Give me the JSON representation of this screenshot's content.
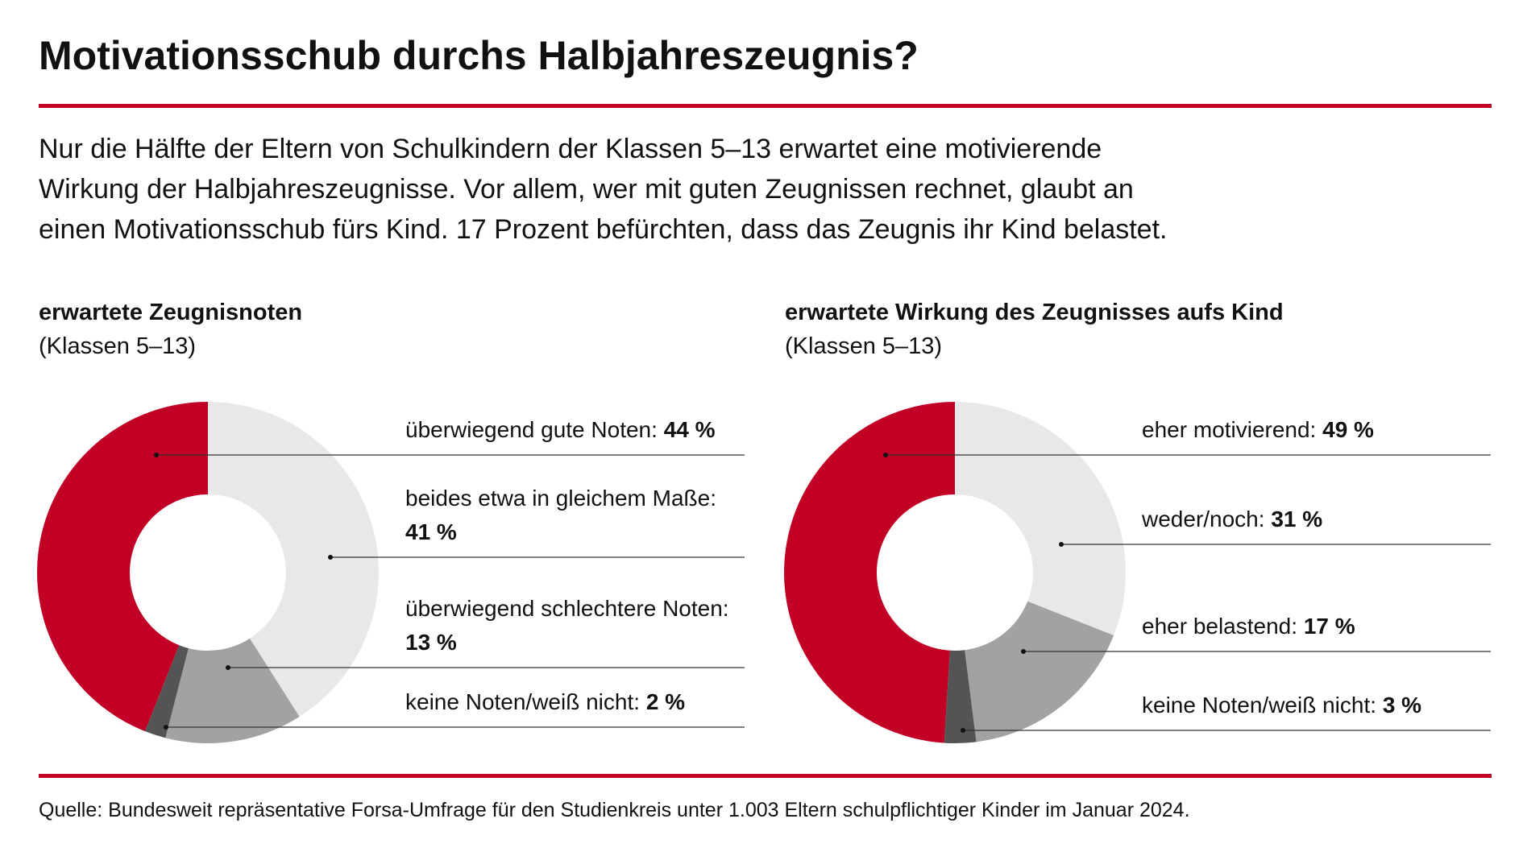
{
  "title": "Motivationsschub durchs Halbjahreszeugnis?",
  "intro": [
    "Nur die Hälfte der Eltern von Schulkindern der Klassen 5–13 erwartet eine motivierende",
    "Wirkung der Halbjahreszeugnisse. Vor allem, wer mit guten Zeugnissen rechnet, glaubt an",
    "einen Motivationsschub fürs Kind. 17 Prozent befürchten, dass das Zeugnis ihr Kind belastet."
  ],
  "source": "Quelle: Bundesweit repräsentative Forsa-Umfrage für den Studienkreis unter 1.003 Eltern schulpflichtiger Kinder im Januar 2024.",
  "chart_data": [
    {
      "type": "donut",
      "title": "erwartete Zeugnisnoten",
      "subtitle": "(Klassen 5–13)",
      "categories": [
        "überwiegend gute Noten:",
        "beides etwa in gleichem Maße:",
        "überwiegend schlechtere Noten:",
        "keine Noten/weiß nicht:"
      ],
      "values": [
        44,
        41,
        13,
        2
      ],
      "value_labels": [
        "44 %",
        "41 %",
        "13 %",
        "2 %"
      ],
      "colors": [
        "#c20025",
        "#e8e8e8",
        "#a2a2a2",
        "#545454"
      ]
    },
    {
      "type": "donut",
      "title": "erwartete Wirkung des Zeugnisses aufs Kind",
      "subtitle": "(Klassen 5–13)",
      "categories": [
        "eher motivierend:",
        "weder/noch:",
        "eher belastend:",
        "keine Noten/weiß nicht:"
      ],
      "values": [
        49,
        31,
        17,
        3
      ],
      "value_labels": [
        "49 %",
        "31 %",
        "17 %",
        "3 %"
      ],
      "colors": [
        "#c20025",
        "#e8e8e8",
        "#a2a2a2",
        "#545454"
      ]
    }
  ]
}
